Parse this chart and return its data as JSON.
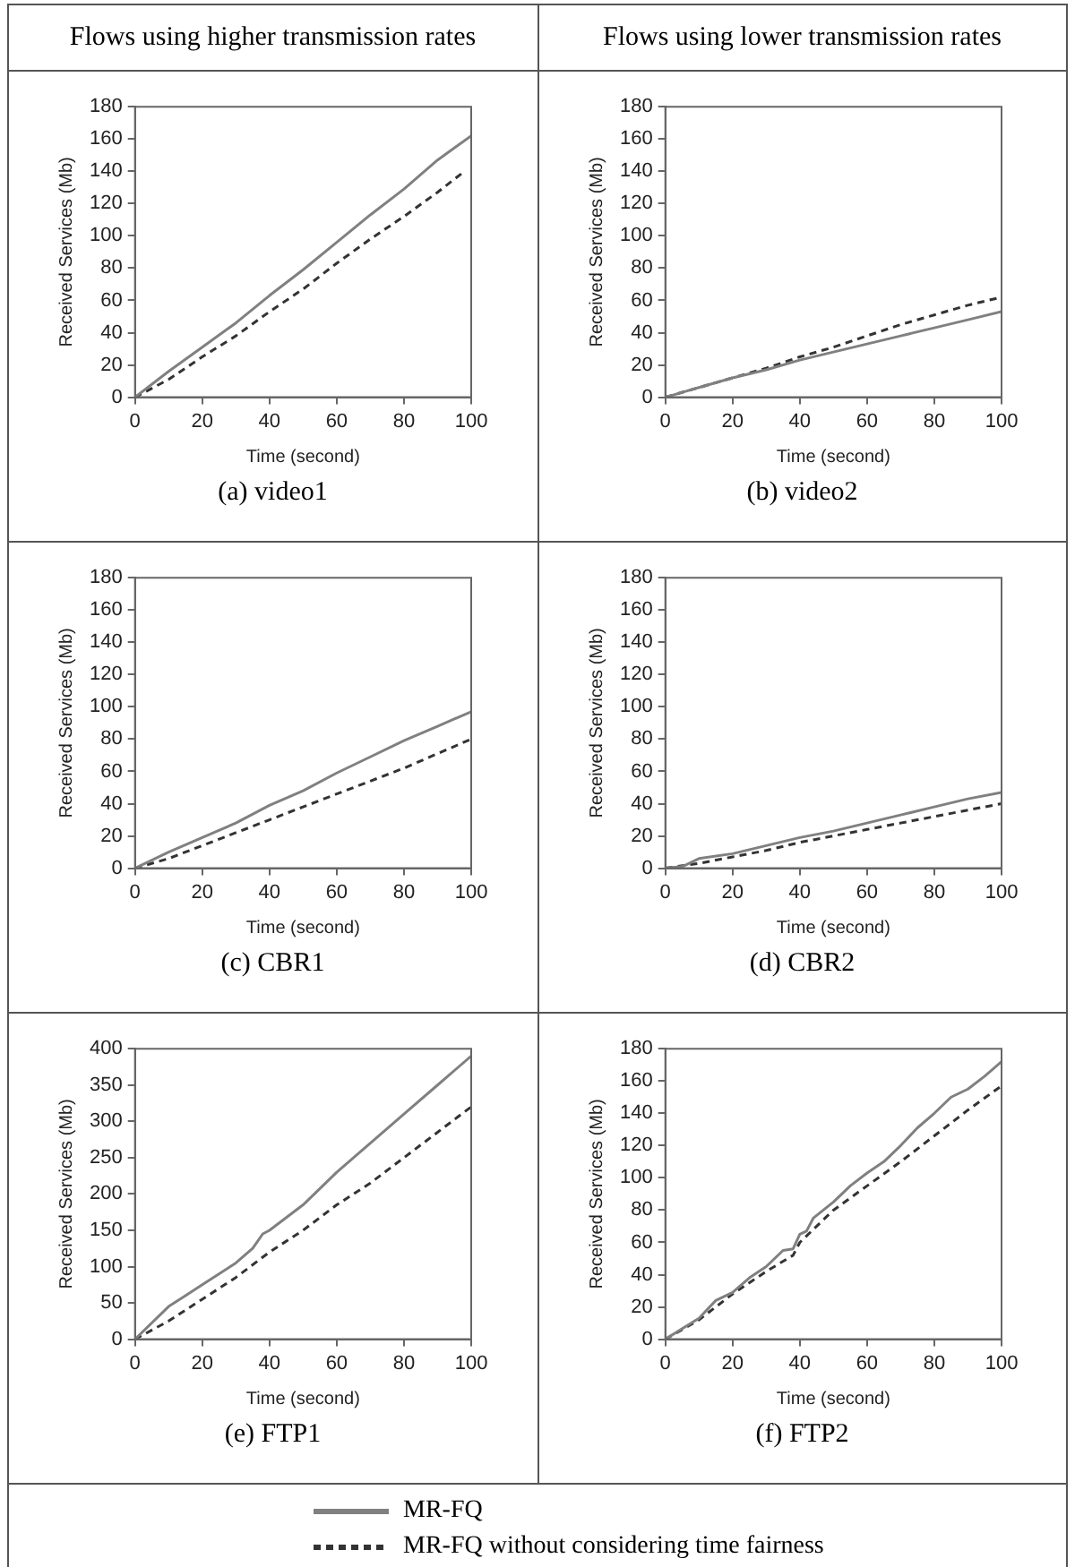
{
  "chart_data": [
    {
      "type": "line",
      "title": "(a) video1",
      "annotations": [
        "Flows using higher transmission rates"
      ],
      "xlabel": "Time (second)",
      "ylabel": "Received Services (Mb)",
      "xlim": [
        0,
        100
      ],
      "xticks": [
        0,
        20,
        40,
        60,
        80,
        100
      ],
      "ylim": [
        0,
        180
      ],
      "yticks": [
        0,
        20,
        40,
        60,
        80,
        100,
        120,
        140,
        160,
        180
      ],
      "grid": false,
      "legend": "bottom",
      "marker": "none",
      "series": [
        {
          "name": "MR-FQ",
          "color": "#808080",
          "line_style": "solid",
          "x": [
            0,
            10,
            20,
            30,
            40,
            50,
            60,
            70,
            80,
            90,
            100
          ],
          "values": [
            0,
            16,
            31,
            46,
            63,
            79,
            96,
            113,
            129,
            147,
            162
          ]
        },
        {
          "name": "MR-FQ without considering time fairness",
          "color": "#333333",
          "line_style": "dashed",
          "x": [
            0,
            10,
            20,
            30,
            40,
            50,
            60,
            70,
            80,
            90,
            98
          ],
          "values": [
            0,
            11,
            25,
            38,
            53,
            67,
            83,
            98,
            112,
            127,
            140
          ]
        }
      ]
    },
    {
      "type": "line",
      "title": "(b) video2",
      "annotations": [
        "Flows using lower transmission rates"
      ],
      "xlabel": "Time (second)",
      "ylabel": "Received Services (Mb)",
      "xlim": [
        0,
        100
      ],
      "xticks": [
        0,
        20,
        40,
        60,
        80,
        100
      ],
      "ylim": [
        0,
        180
      ],
      "yticks": [
        0,
        20,
        40,
        60,
        80,
        100,
        120,
        140,
        160,
        180
      ],
      "grid": false,
      "marker": "none",
      "series": [
        {
          "color": "#808080",
          "line_style": "solid",
          "x": [
            0,
            10,
            20,
            30,
            40,
            50,
            60,
            70,
            80,
            90,
            100
          ],
          "values": [
            0,
            6,
            12,
            17,
            23,
            28,
            33,
            38,
            43,
            48,
            53
          ]
        },
        {
          "color": "#333333",
          "line_style": "dashed",
          "x": [
            0,
            10,
            20,
            30,
            40,
            50,
            60,
            70,
            80,
            90,
            100
          ],
          "values": [
            0,
            6,
            12,
            18,
            25,
            31,
            38,
            45,
            51,
            57,
            62
          ]
        }
      ]
    },
    {
      "type": "line",
      "title": "(c) CBR1",
      "xlabel": "Time (second)",
      "ylabel": "Received Services (Mb)",
      "xlim": [
        0,
        100
      ],
      "xticks": [
        0,
        20,
        40,
        60,
        80,
        100
      ],
      "ylim": [
        0,
        180
      ],
      "yticks": [
        0,
        20,
        40,
        60,
        80,
        100,
        120,
        140,
        160,
        180
      ],
      "grid": false,
      "marker": "none",
      "series": [
        {
          "color": "#808080",
          "line_style": "solid",
          "x": [
            0,
            10,
            20,
            30,
            40,
            50,
            60,
            70,
            80,
            90,
            100
          ],
          "values": [
            0,
            10,
            19,
            28,
            39,
            48,
            59,
            69,
            79,
            88,
            97
          ]
        },
        {
          "color": "#333333",
          "line_style": "dashed",
          "x": [
            0,
            10,
            20,
            30,
            40,
            50,
            60,
            70,
            80,
            90,
            100
          ],
          "values": [
            0,
            6,
            14,
            22,
            30,
            38,
            46,
            54,
            62,
            71,
            80
          ]
        }
      ]
    },
    {
      "type": "line",
      "title": "(d) CBR2",
      "xlabel": "Time (second)",
      "ylabel": "Received Services (Mb)",
      "xlim": [
        0,
        100
      ],
      "xticks": [
        0,
        20,
        40,
        60,
        80,
        100
      ],
      "ylim": [
        0,
        180
      ],
      "yticks": [
        0,
        20,
        40,
        60,
        80,
        100,
        120,
        140,
        160,
        180
      ],
      "grid": false,
      "marker": "none",
      "series": [
        {
          "color": "#808080",
          "line_style": "solid",
          "x": [
            0,
            5,
            10,
            20,
            30,
            40,
            50,
            60,
            70,
            80,
            90,
            100
          ],
          "values": [
            0,
            1,
            6,
            9,
            14,
            19,
            23,
            28,
            33,
            38,
            43,
            47
          ]
        },
        {
          "color": "#333333",
          "line_style": "dashed",
          "x": [
            0,
            10,
            20,
            30,
            40,
            50,
            60,
            70,
            80,
            90,
            100
          ],
          "values": [
            0,
            3,
            7,
            11,
            16,
            20,
            24,
            28,
            32,
            36,
            40
          ]
        }
      ]
    },
    {
      "type": "line",
      "title": "(e) FTP1",
      "xlabel": "Time (second)",
      "ylabel": "Received Services (Mb)",
      "xlim": [
        0,
        100
      ],
      "xticks": [
        0,
        20,
        40,
        60,
        80,
        100
      ],
      "ylim": [
        0,
        400
      ],
      "yticks": [
        0,
        50,
        100,
        150,
        200,
        250,
        300,
        350,
        400
      ],
      "grid": false,
      "marker": "none",
      "series": [
        {
          "color": "#808080",
          "line_style": "solid",
          "x": [
            0,
            10,
            15,
            20,
            30,
            35,
            38,
            40,
            50,
            60,
            70,
            80,
            90,
            100
          ],
          "values": [
            0,
            45,
            60,
            75,
            105,
            125,
            145,
            150,
            185,
            230,
            270,
            310,
            350,
            390
          ]
        },
        {
          "color": "#333333",
          "line_style": "dashed",
          "x": [
            0,
            10,
            20,
            30,
            40,
            50,
            60,
            70,
            80,
            90,
            100
          ],
          "values": [
            0,
            25,
            55,
            85,
            120,
            150,
            185,
            215,
            250,
            285,
            320
          ]
        }
      ]
    },
    {
      "type": "line",
      "title": "(f) FTP2",
      "xlabel": "Time (second)",
      "ylabel": "Received Services (Mb)",
      "xlim": [
        0,
        100
      ],
      "xticks": [
        0,
        20,
        40,
        60,
        80,
        100
      ],
      "ylim": [
        0,
        180
      ],
      "yticks": [
        0,
        20,
        40,
        60,
        80,
        100,
        120,
        140,
        160,
        180
      ],
      "grid": false,
      "marker": "none",
      "series": [
        {
          "color": "#808080",
          "line_style": "solid",
          "x": [
            0,
            10,
            15,
            20,
            25,
            30,
            35,
            38,
            40,
            42,
            44,
            50,
            55,
            60,
            65,
            70,
            75,
            80,
            85,
            90,
            95,
            100
          ],
          "values": [
            0,
            13,
            24,
            29,
            38,
            45,
            55,
            56,
            65,
            67,
            75,
            85,
            95,
            103,
            110,
            120,
            131,
            140,
            150,
            155,
            163,
            172
          ]
        },
        {
          "color": "#333333",
          "line_style": "dashed",
          "x": [
            0,
            10,
            20,
            30,
            38,
            40,
            50,
            60,
            70,
            80,
            90,
            100
          ],
          "values": [
            0,
            12,
            28,
            42,
            52,
            60,
            80,
            95,
            110,
            126,
            142,
            157
          ]
        }
      ]
    }
  ]
}
